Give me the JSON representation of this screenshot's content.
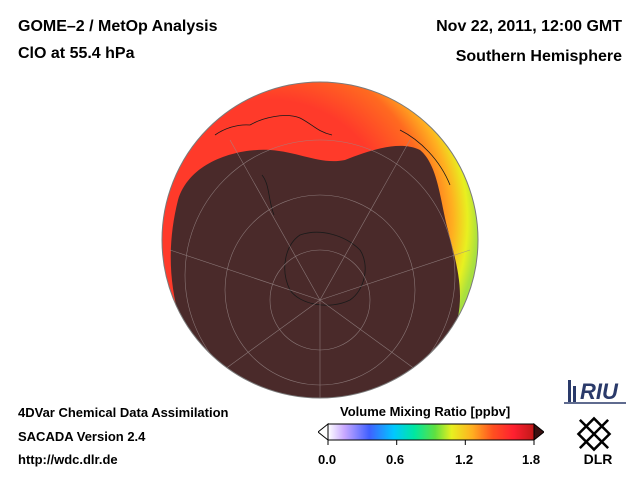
{
  "header": {
    "title": "GOME–2 / MetOp Analysis",
    "species": "ClO at 55.4 hPa",
    "date": "Nov 22, 2011, 12:00 GMT",
    "region": "Southern Hemisphere"
  },
  "footer": {
    "line1": "4DVar Chemical Data Assimilation",
    "line2": "SACADA Version 2.4",
    "line3": "http://wdc.dlr.de"
  },
  "colorbar": {
    "title": "Volume Mixing Ratio [ppbv]",
    "ticks": [
      "0.0",
      "0.6",
      "1.2",
      "1.8"
    ],
    "range": [
      0.0,
      1.8
    ],
    "colors": [
      "#ffffff",
      "#c8a8ff",
      "#4060ff",
      "#00c8ff",
      "#00e8a0",
      "#60e040",
      "#e8f020",
      "#ffb020",
      "#ff5020",
      "#ff2030",
      "#c01818"
    ]
  },
  "logos": {
    "riu": "RIU",
    "dlr": "DLR"
  },
  "map": {
    "projection": "orthographic",
    "hemisphere": "south",
    "dark_region_color": "#4a2a2a",
    "rim_colors": [
      "#ff3a2a",
      "#ffb020",
      "#e8f020",
      "#a8e040"
    ]
  }
}
